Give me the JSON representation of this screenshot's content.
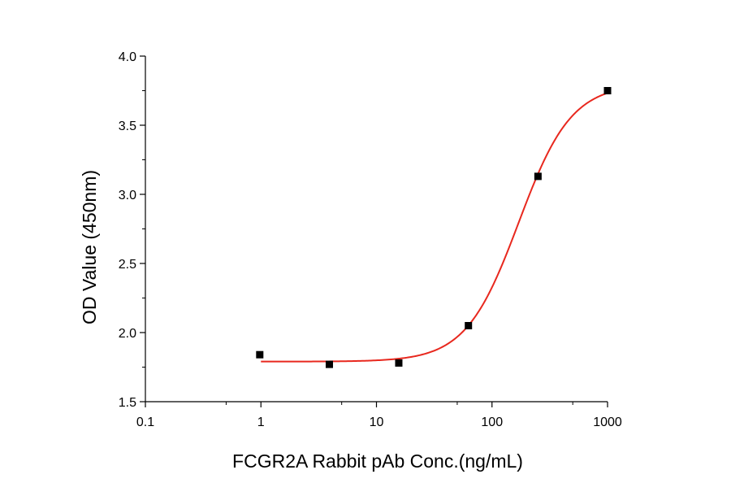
{
  "chart_data": {
    "type": "scatter",
    "xlabel": "FCGR2A Rabbit pAb  Conc.(ng/mL)",
    "ylabel": "OD Value (450nm)",
    "xscale": "log",
    "xlim": [
      0.1,
      1000
    ],
    "ylim": [
      1.5,
      4.0
    ],
    "x_ticks": [
      {
        "value": 0.1,
        "label": "0.1"
      },
      {
        "value": 1,
        "label": "1"
      },
      {
        "value": 10,
        "label": "10"
      },
      {
        "value": 100,
        "label": "100"
      },
      {
        "value": 1000,
        "label": "1000"
      }
    ],
    "y_ticks": [
      {
        "value": 1.5,
        "label": "1.5"
      },
      {
        "value": 2.0,
        "label": "2.0"
      },
      {
        "value": 2.5,
        "label": "2.5"
      },
      {
        "value": 3.0,
        "label": "3.0"
      },
      {
        "value": 3.5,
        "label": "3.5"
      },
      {
        "value": 4.0,
        "label": "4.0"
      }
    ],
    "series": [
      {
        "marker": "square",
        "color": "#000000",
        "x": [
          0.977,
          3.91,
          15.6,
          62.5,
          250,
          1000
        ],
        "y": [
          1.84,
          1.77,
          1.78,
          2.05,
          3.13,
          3.75
        ]
      }
    ],
    "fit_curve": {
      "type": "four-parameter logistic",
      "color": "#e8281e",
      "bottom": 1.79,
      "top": 3.8,
      "ec50": 170,
      "hill": 1.9,
      "x_range": [
        1,
        1000
      ]
    },
    "grid": false,
    "legend": "none"
  }
}
